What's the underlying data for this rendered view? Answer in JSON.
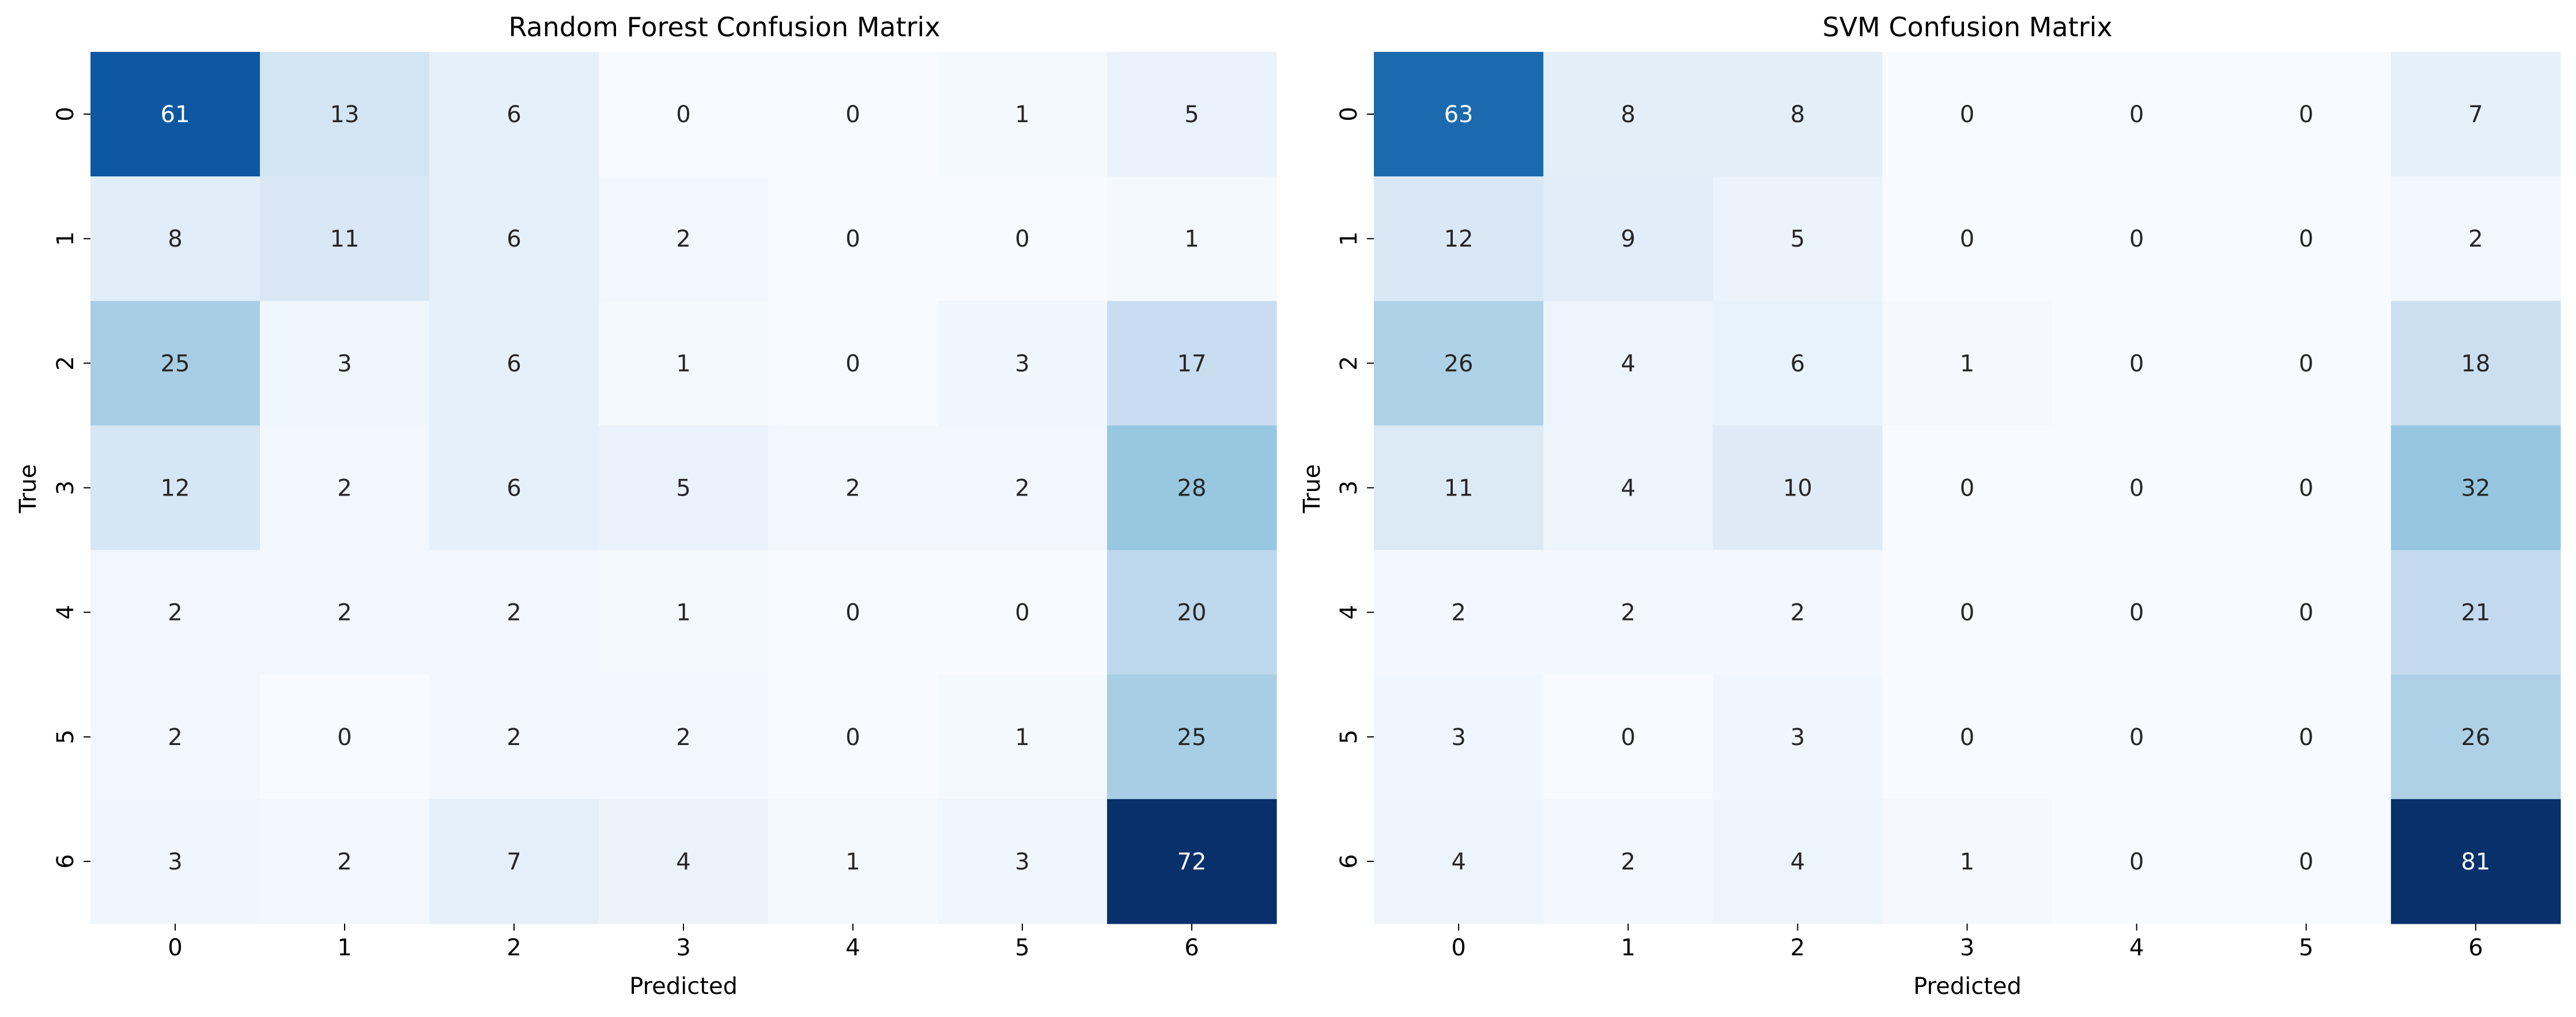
{
  "chart_data": [
    {
      "type": "heatmap",
      "title": "Random Forest Confusion Matrix",
      "xlabel": "Predicted",
      "ylabel": "True",
      "x_categories": [
        "0",
        "1",
        "2",
        "3",
        "4",
        "5",
        "6"
      ],
      "y_categories": [
        "0",
        "1",
        "2",
        "3",
        "4",
        "5",
        "6"
      ],
      "colormap": "Blues",
      "colorbar": false,
      "annotated": true,
      "values": [
        [
          61,
          13,
          6,
          0,
          0,
          1,
          5
        ],
        [
          8,
          11,
          6,
          2,
          0,
          0,
          1
        ],
        [
          25,
          3,
          6,
          1,
          0,
          3,
          17
        ],
        [
          12,
          2,
          6,
          5,
          2,
          2,
          28
        ],
        [
          2,
          2,
          2,
          1,
          0,
          0,
          20
        ],
        [
          2,
          0,
          2,
          2,
          0,
          1,
          25
        ],
        [
          3,
          2,
          7,
          4,
          1,
          3,
          72
        ]
      ]
    },
    {
      "type": "heatmap",
      "title": "SVM Confusion Matrix",
      "xlabel": "Predicted",
      "ylabel": "True",
      "x_categories": [
        "0",
        "1",
        "2",
        "3",
        "4",
        "5",
        "6"
      ],
      "y_categories": [
        "0",
        "1",
        "2",
        "3",
        "4",
        "5",
        "6"
      ],
      "colormap": "Blues",
      "colorbar": false,
      "annotated": true,
      "values": [
        [
          63,
          8,
          8,
          0,
          0,
          0,
          7
        ],
        [
          12,
          9,
          5,
          0,
          0,
          0,
          2
        ],
        [
          26,
          4,
          6,
          1,
          0,
          0,
          18
        ],
        [
          11,
          4,
          10,
          0,
          0,
          0,
          32
        ],
        [
          2,
          2,
          2,
          0,
          0,
          0,
          21
        ],
        [
          3,
          0,
          3,
          0,
          0,
          0,
          26
        ],
        [
          4,
          2,
          4,
          1,
          0,
          0,
          81
        ]
      ]
    }
  ]
}
